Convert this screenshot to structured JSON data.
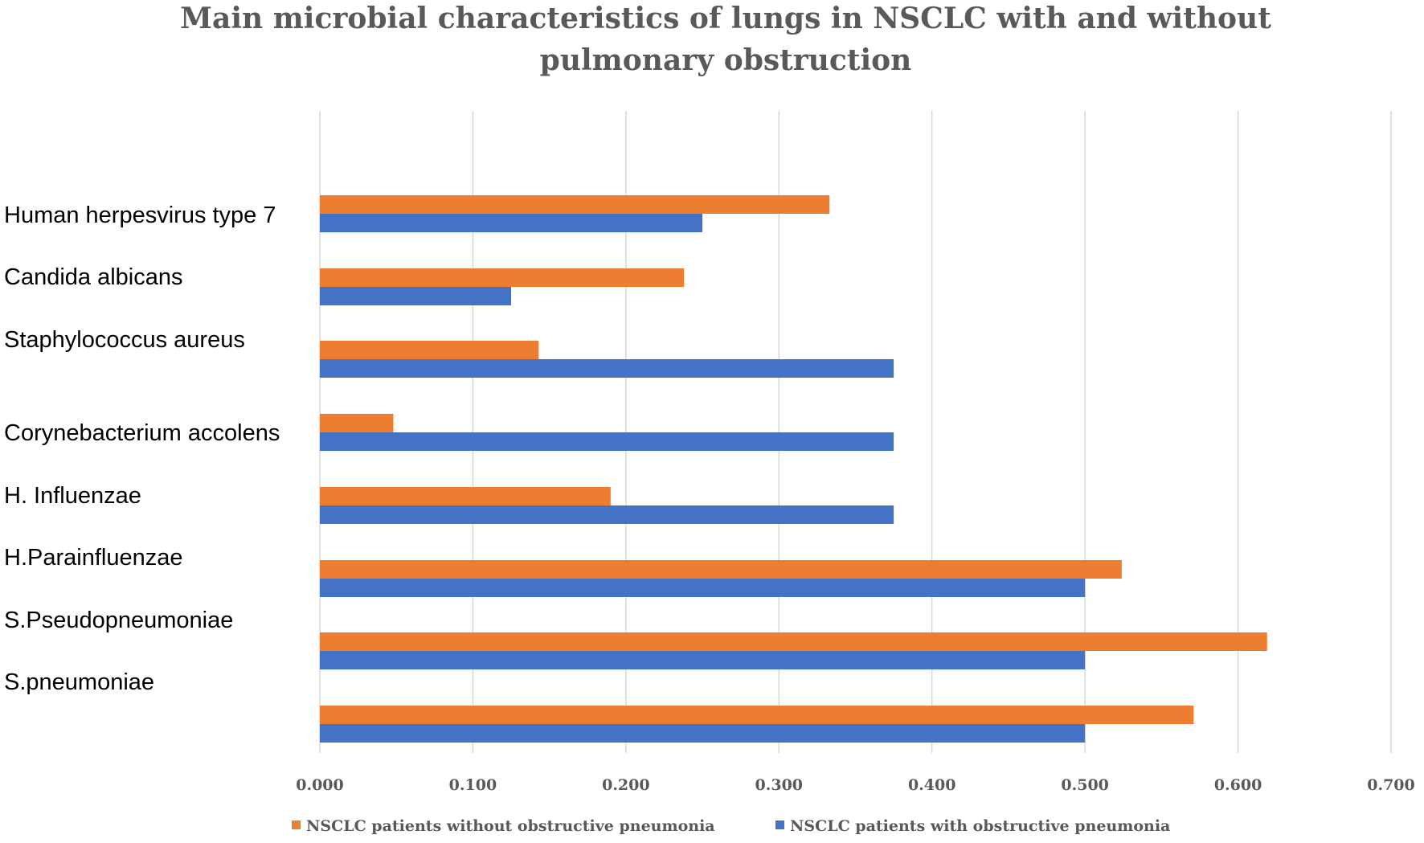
{
  "chart_data": {
    "type": "bar",
    "orientation": "horizontal",
    "title": "Main microbial characteristics of lungs in NSCLC with and without pulmonary obstruction",
    "title_lines": [
      "Main microbial characteristics of lungs in NSCLC with and without",
      "pulmonary obstruction"
    ],
    "xlabel": "",
    "ylabel": "",
    "xlim": [
      0,
      0.7
    ],
    "ticks": [
      "0.000",
      "0.100",
      "0.200",
      "0.300",
      "0.400",
      "0.500",
      "0.600",
      "0.700"
    ],
    "grid": true,
    "legend_position": "bottom",
    "categories": [
      "Human herpesvirus type 7",
      "Candida albicans",
      "Staphylococcus aureus",
      "Corynebacterium accolens",
      "H. Influenzae",
      "H.Parainfluenzae",
      "S.Pseudopneumoniae",
      "S.pneumoniae"
    ],
    "series": [
      {
        "name": "NSCLC patients without obstructive pneumonia",
        "color": "#ED7D31",
        "values": [
          0.333,
          0.238,
          0.143,
          0.048,
          0.19,
          0.524,
          0.619,
          0.571
        ]
      },
      {
        "name": "NSCLC patients with obstructive pneumonia",
        "color": "#4472C4",
        "values": [
          0.25,
          0.125,
          0.375,
          0.375,
          0.375,
          0.5,
          0.5,
          0.5
        ]
      }
    ]
  }
}
